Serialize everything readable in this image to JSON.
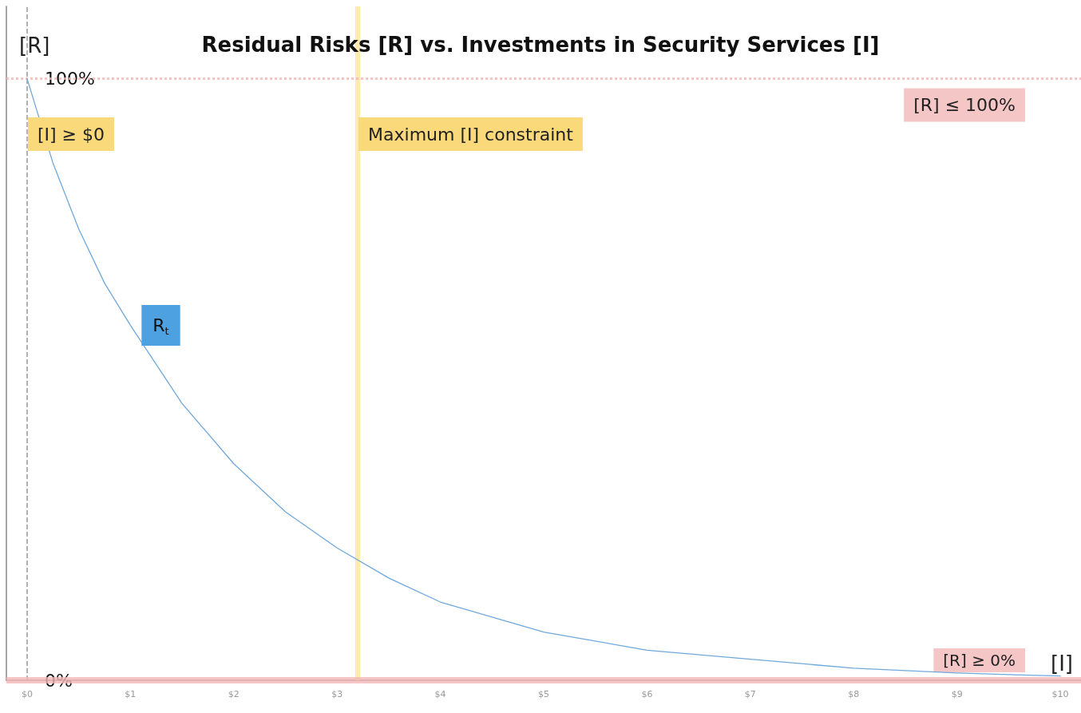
{
  "chart_data": {
    "type": "line",
    "title": "Residual Risks [R] vs. Investments in Security Services [I]",
    "xlabel": "[I]",
    "ylabel": "[R]",
    "x": [
      0,
      0.25,
      0.5,
      0.75,
      1,
      1.5,
      2,
      2.5,
      3,
      3.5,
      4,
      4.5,
      5,
      6,
      7,
      8,
      9,
      10
    ],
    "series": [
      {
        "name": "R$_{t}$",
        "color": "#6fa8dc",
        "values": [
          100,
          86,
          75,
          66,
          59,
          46,
          36,
          28,
          22,
          17,
          13,
          10.5,
          8,
          5,
          3.5,
          2,
          1.2,
          0.7
        ]
      }
    ],
    "xlim": [
      -0.2,
      10.2
    ],
    "ylim": [
      0,
      112
    ],
    "xticks": [
      {
        "value": 0,
        "label": "$0"
      },
      {
        "value": 1,
        "label": "$1"
      },
      {
        "value": 2,
        "label": "$2"
      },
      {
        "value": 3,
        "label": "$3"
      },
      {
        "value": 4,
        "label": "$4"
      },
      {
        "value": 5,
        "label": "$5"
      },
      {
        "value": 6,
        "label": "$6"
      },
      {
        "value": 7,
        "label": "$7"
      },
      {
        "value": 8,
        "label": "$8"
      },
      {
        "value": 9,
        "label": "$9"
      },
      {
        "value": 10,
        "label": "$10"
      }
    ],
    "yticks": [
      {
        "value": 0,
        "label": "0%"
      },
      {
        "value": 100,
        "label": "100%"
      }
    ],
    "ref_lines": [
      {
        "axis": "x",
        "value": 0,
        "label": "[I] ≥ $0",
        "color": "#7f7f7f",
        "line_style": "dashed"
      },
      {
        "axis": "x",
        "value": 3.2,
        "label": "Maximum [I] constraint",
        "color": "#ffe699",
        "line_style": "solid"
      },
      {
        "axis": "y",
        "value": 100,
        "label": "[R] ≤ 100%",
        "color": "#f4b6b6",
        "line_style": "dotted"
      },
      {
        "axis": "y",
        "value": 0,
        "label": "[R] ≥ 0%",
        "color": "#f4b6b6",
        "line_style": "solid"
      }
    ],
    "grid": false,
    "legend": false,
    "marker": "none",
    "line_style": "solid"
  }
}
